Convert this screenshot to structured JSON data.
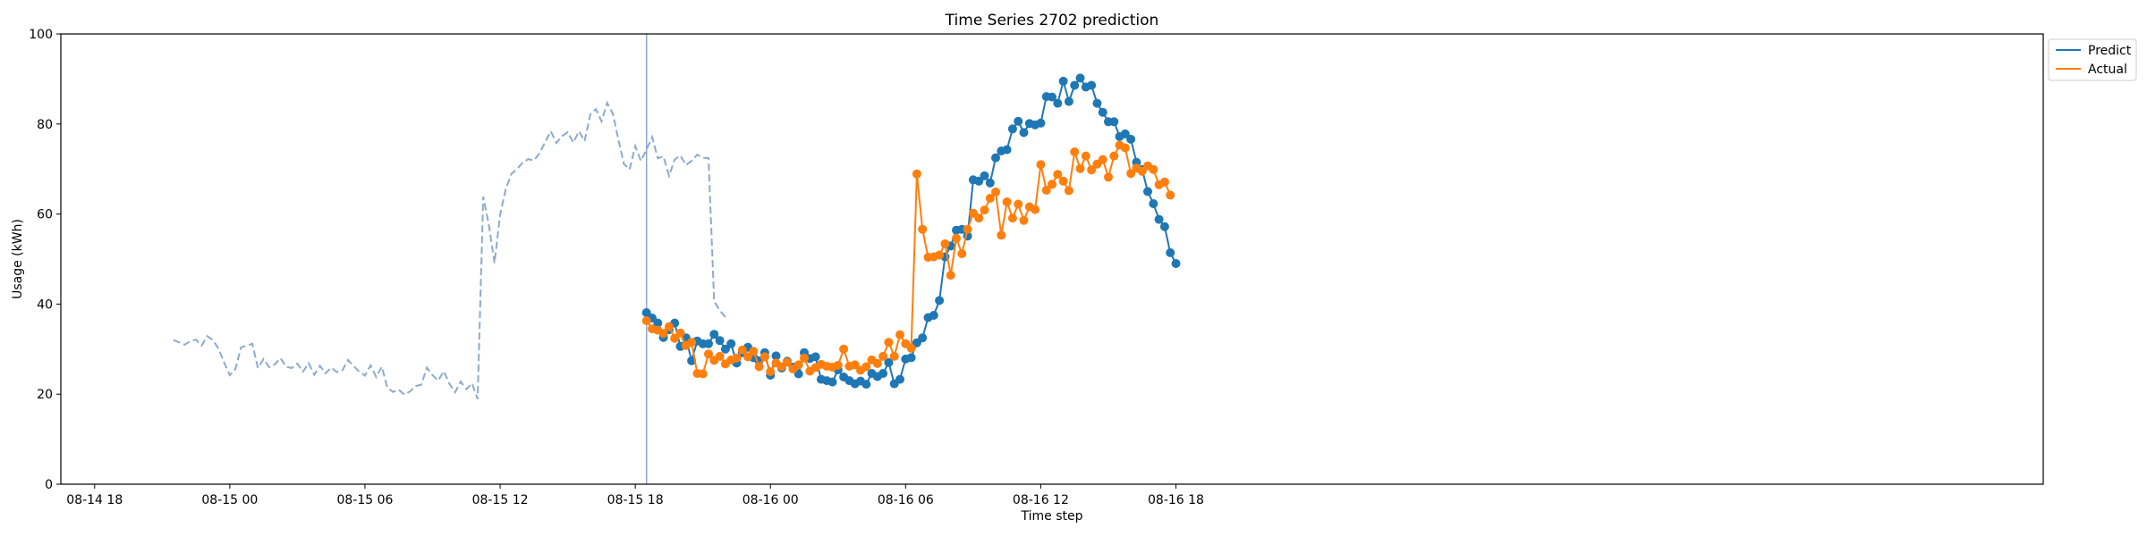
{
  "chart_data": {
    "type": "line",
    "title": "Time Series 2702 prediction",
    "xlabel": "Time step",
    "ylabel": "Usage (kWh)",
    "ylim": [
      0,
      100
    ],
    "y_ticks": [
      0,
      20,
      40,
      60,
      80,
      100
    ],
    "x_axis_units": "hours from 08-14 18:00",
    "xlim": [
      -1.5,
      86.5
    ],
    "x_ticks": [
      {
        "x": 0,
        "label": "08-14 18"
      },
      {
        "x": 6,
        "label": "08-15 00"
      },
      {
        "x": 12,
        "label": "08-15 06"
      },
      {
        "x": 18,
        "label": "08-15 12"
      },
      {
        "x": 24,
        "label": "08-15 18"
      },
      {
        "x": 30,
        "label": "08-16 00"
      },
      {
        "x": 36,
        "label": "08-16 06"
      },
      {
        "x": 42,
        "label": "08-16 12"
      },
      {
        "x": 48,
        "label": "08-16 18"
      }
    ],
    "grid": false,
    "legend_position": "top-right",
    "forecast_start_x": 24.5,
    "history": {
      "color": "#8eaacc",
      "style": "dashed",
      "x_start": 3.5,
      "x_step": 0.25,
      "values": [
        32.0,
        31.5,
        31.0,
        31.8,
        32.1,
        30.8,
        32.9,
        32.0,
        30.1,
        27.0,
        24.2,
        25.6,
        30.4,
        30.8,
        31.2,
        25.8,
        27.8,
        26.0,
        26.6,
        28.0,
        26.1,
        25.8,
        26.8,
        25.0,
        26.9,
        24.3,
        26.3,
        24.6,
        25.9,
        24.9,
        25.3,
        27.6,
        26.2,
        25.0,
        24.1,
        26.4,
        23.8,
        26.1,
        21.4,
        20.5,
        21.0,
        19.9,
        20.6,
        21.8,
        22.1,
        25.9,
        24.2,
        23.0,
        25.1,
        22.3,
        20.4,
        22.8,
        21.1,
        22.4,
        18.9,
        63.9,
        57.5,
        49.1,
        59.8,
        65.5,
        68.9,
        70.0,
        71.4,
        72.2,
        71.9,
        73.5,
        76.0,
        78.4,
        75.8,
        77.3,
        78.2,
        75.9,
        78.4,
        76.2,
        82.1,
        83.3,
        80.6,
        84.7,
        82.3,
        76.5,
        71.1,
        69.9,
        75.1,
        71.8,
        74.3,
        77.1,
        72.4,
        72.8,
        68.5,
        72.1,
        73.0,
        70.9,
        71.8,
        73.2,
        72.5,
        72.4,
        40.6,
        38.6,
        37.1
      ]
    },
    "series": [
      {
        "name": "Predict",
        "color": "#1f77b4",
        "x_start": 24.5,
        "x_step": 0.25,
        "values": [
          38.1,
          36.9,
          35.8,
          32.6,
          34.3,
          35.8,
          30.6,
          32.5,
          27.4,
          31.8,
          31.2,
          31.2,
          33.3,
          31.9,
          30.0,
          31.2,
          26.9,
          29.2,
          30.4,
          28.1,
          27.4,
          29.2,
          24.2,
          28.5,
          25.8,
          27.3,
          26.0,
          24.5,
          29.2,
          27.9,
          28.3,
          23.3,
          23.0,
          22.7,
          25.4,
          23.8,
          23.0,
          22.3,
          22.9,
          22.2,
          24.6,
          23.9,
          24.6,
          27.0,
          22.3,
          23.3,
          27.8,
          28.1,
          31.4,
          32.5,
          37.0,
          37.5,
          40.8,
          50.5,
          52.9,
          56.4,
          56.6,
          55.1,
          67.6,
          67.3,
          68.5,
          66.9,
          72.5,
          74.0,
          74.3,
          78.9,
          80.6,
          78.1,
          80.1,
          79.8,
          80.2,
          86.1,
          86.0,
          84.6,
          89.5,
          85.0,
          88.6,
          90.2,
          88.2,
          88.6,
          84.6,
          82.6,
          80.5,
          80.5,
          77.2,
          77.8,
          76.6,
          71.5,
          69.9,
          65.0,
          62.3,
          58.8,
          57.2,
          51.4,
          49.0
        ]
      },
      {
        "name": "Actual",
        "color": "#ff7f0e",
        "x_start": 24.5,
        "x_step": 0.25,
        "values": [
          36.3,
          34.5,
          34.2,
          33.5,
          35.0,
          32.4,
          33.6,
          30.8,
          31.5,
          24.6,
          24.5,
          28.9,
          27.5,
          28.4,
          26.7,
          27.6,
          28.0,
          29.8,
          28.3,
          29.5,
          26.1,
          28.3,
          25.0,
          26.9,
          26.1,
          27.1,
          25.6,
          26.5,
          28.0,
          25.1,
          25.9,
          26.6,
          26.2,
          26.0,
          26.4,
          30.0,
          26.2,
          26.5,
          25.3,
          26.1,
          27.6,
          26.8,
          28.4,
          31.5,
          28.4,
          33.2,
          31.2,
          30.2,
          68.9,
          56.6,
          50.4,
          50.5,
          50.9,
          53.4,
          46.4,
          54.6,
          51.2,
          56.6,
          60.2,
          59.1,
          60.9,
          63.5,
          64.9,
          55.3,
          62.7,
          59.1,
          62.2,
          58.6,
          61.6,
          61.0,
          71.0,
          65.3,
          66.6,
          68.8,
          67.3,
          65.2,
          73.8,
          70.1,
          72.9,
          69.8,
          71.1,
          72.1,
          68.2,
          72.9,
          75.3,
          74.7,
          69.0,
          70.2,
          69.5,
          70.7,
          69.9,
          66.5,
          67.1,
          64.2
        ]
      }
    ]
  }
}
